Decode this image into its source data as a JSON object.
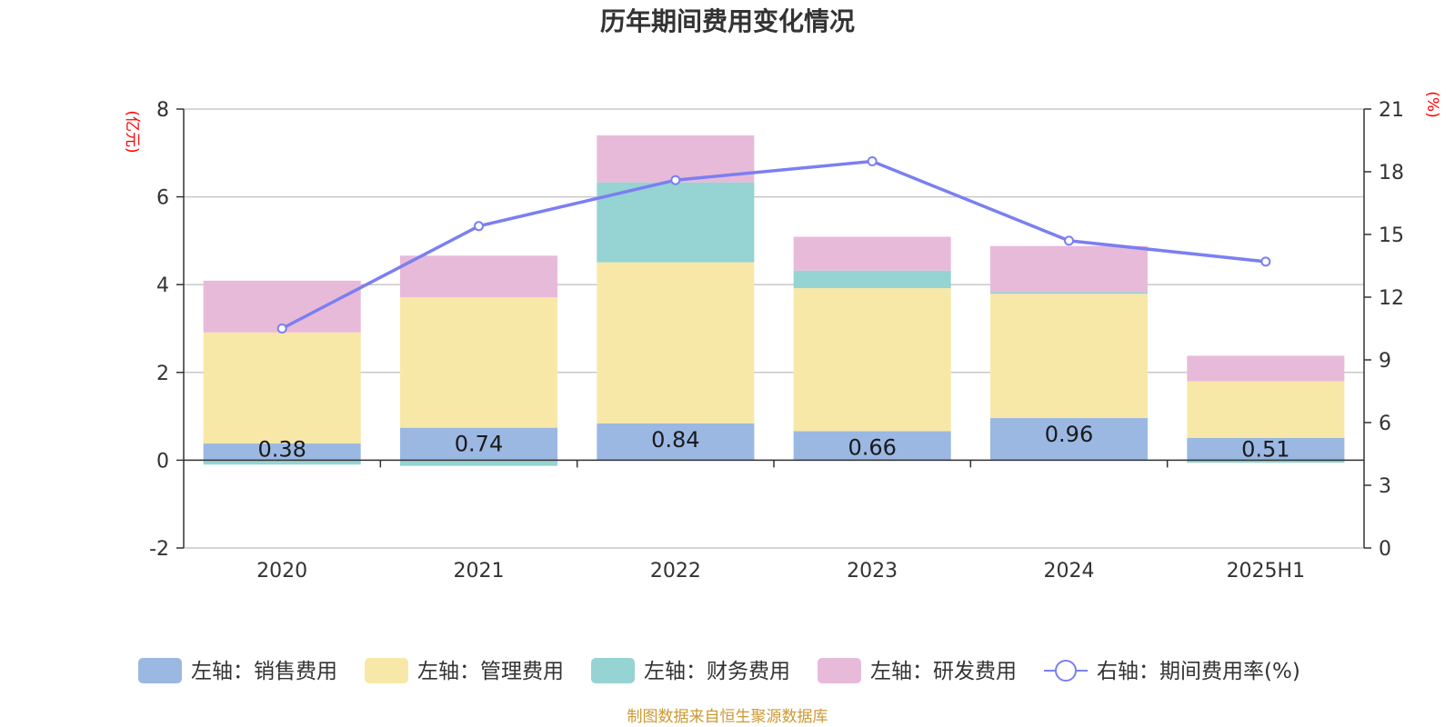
{
  "chart_data": {
    "type": "bar",
    "title": "历年期间费用变化情况",
    "categories": [
      "2020",
      "2021",
      "2022",
      "2023",
      "2024",
      "2025H1"
    ],
    "left_axis": {
      "unit": "(亿元)",
      "min": -2,
      "max": 8,
      "ticks": [
        "-2",
        "0",
        "2",
        "4",
        "6",
        "8"
      ]
    },
    "right_axis": {
      "unit": "(%)",
      "min": 0,
      "max": 21,
      "ticks": [
        "0",
        "3",
        "6",
        "9",
        "12",
        "15",
        "18",
        "21"
      ]
    },
    "series": [
      {
        "name": "左轴：销售费用",
        "type": "bar",
        "axis": "left",
        "color": "#9bb8e3",
        "values": [
          0.38,
          0.74,
          0.84,
          0.66,
          0.96,
          0.51
        ],
        "labels": [
          "0.38",
          "0.74",
          "0.84",
          "0.66",
          "0.96",
          "0.51"
        ]
      },
      {
        "name": "左轴：管理费用",
        "type": "bar",
        "axis": "left",
        "color": "#f8e8a8",
        "values": [
          2.53,
          2.97,
          3.67,
          3.26,
          2.83,
          1.29
        ]
      },
      {
        "name": "左轴：财务费用",
        "type": "bar",
        "axis": "left",
        "color": "#96d3d3",
        "values": [
          -0.1,
          -0.13,
          1.82,
          0.4,
          0.04,
          -0.06
        ]
      },
      {
        "name": "左轴：研发费用",
        "type": "bar",
        "axis": "left",
        "color": "#e8bad9",
        "values": [
          1.18,
          0.95,
          1.07,
          0.77,
          1.05,
          0.58
        ]
      },
      {
        "name": "右轴：期间费用率(%)",
        "type": "line",
        "axis": "right",
        "color": "#7b7ff0",
        "values": [
          10.5,
          15.4,
          17.6,
          18.5,
          14.7,
          13.7
        ]
      }
    ],
    "grid": true,
    "legend": "bottom"
  },
  "source": "制图数据来自恒生聚源数据库"
}
